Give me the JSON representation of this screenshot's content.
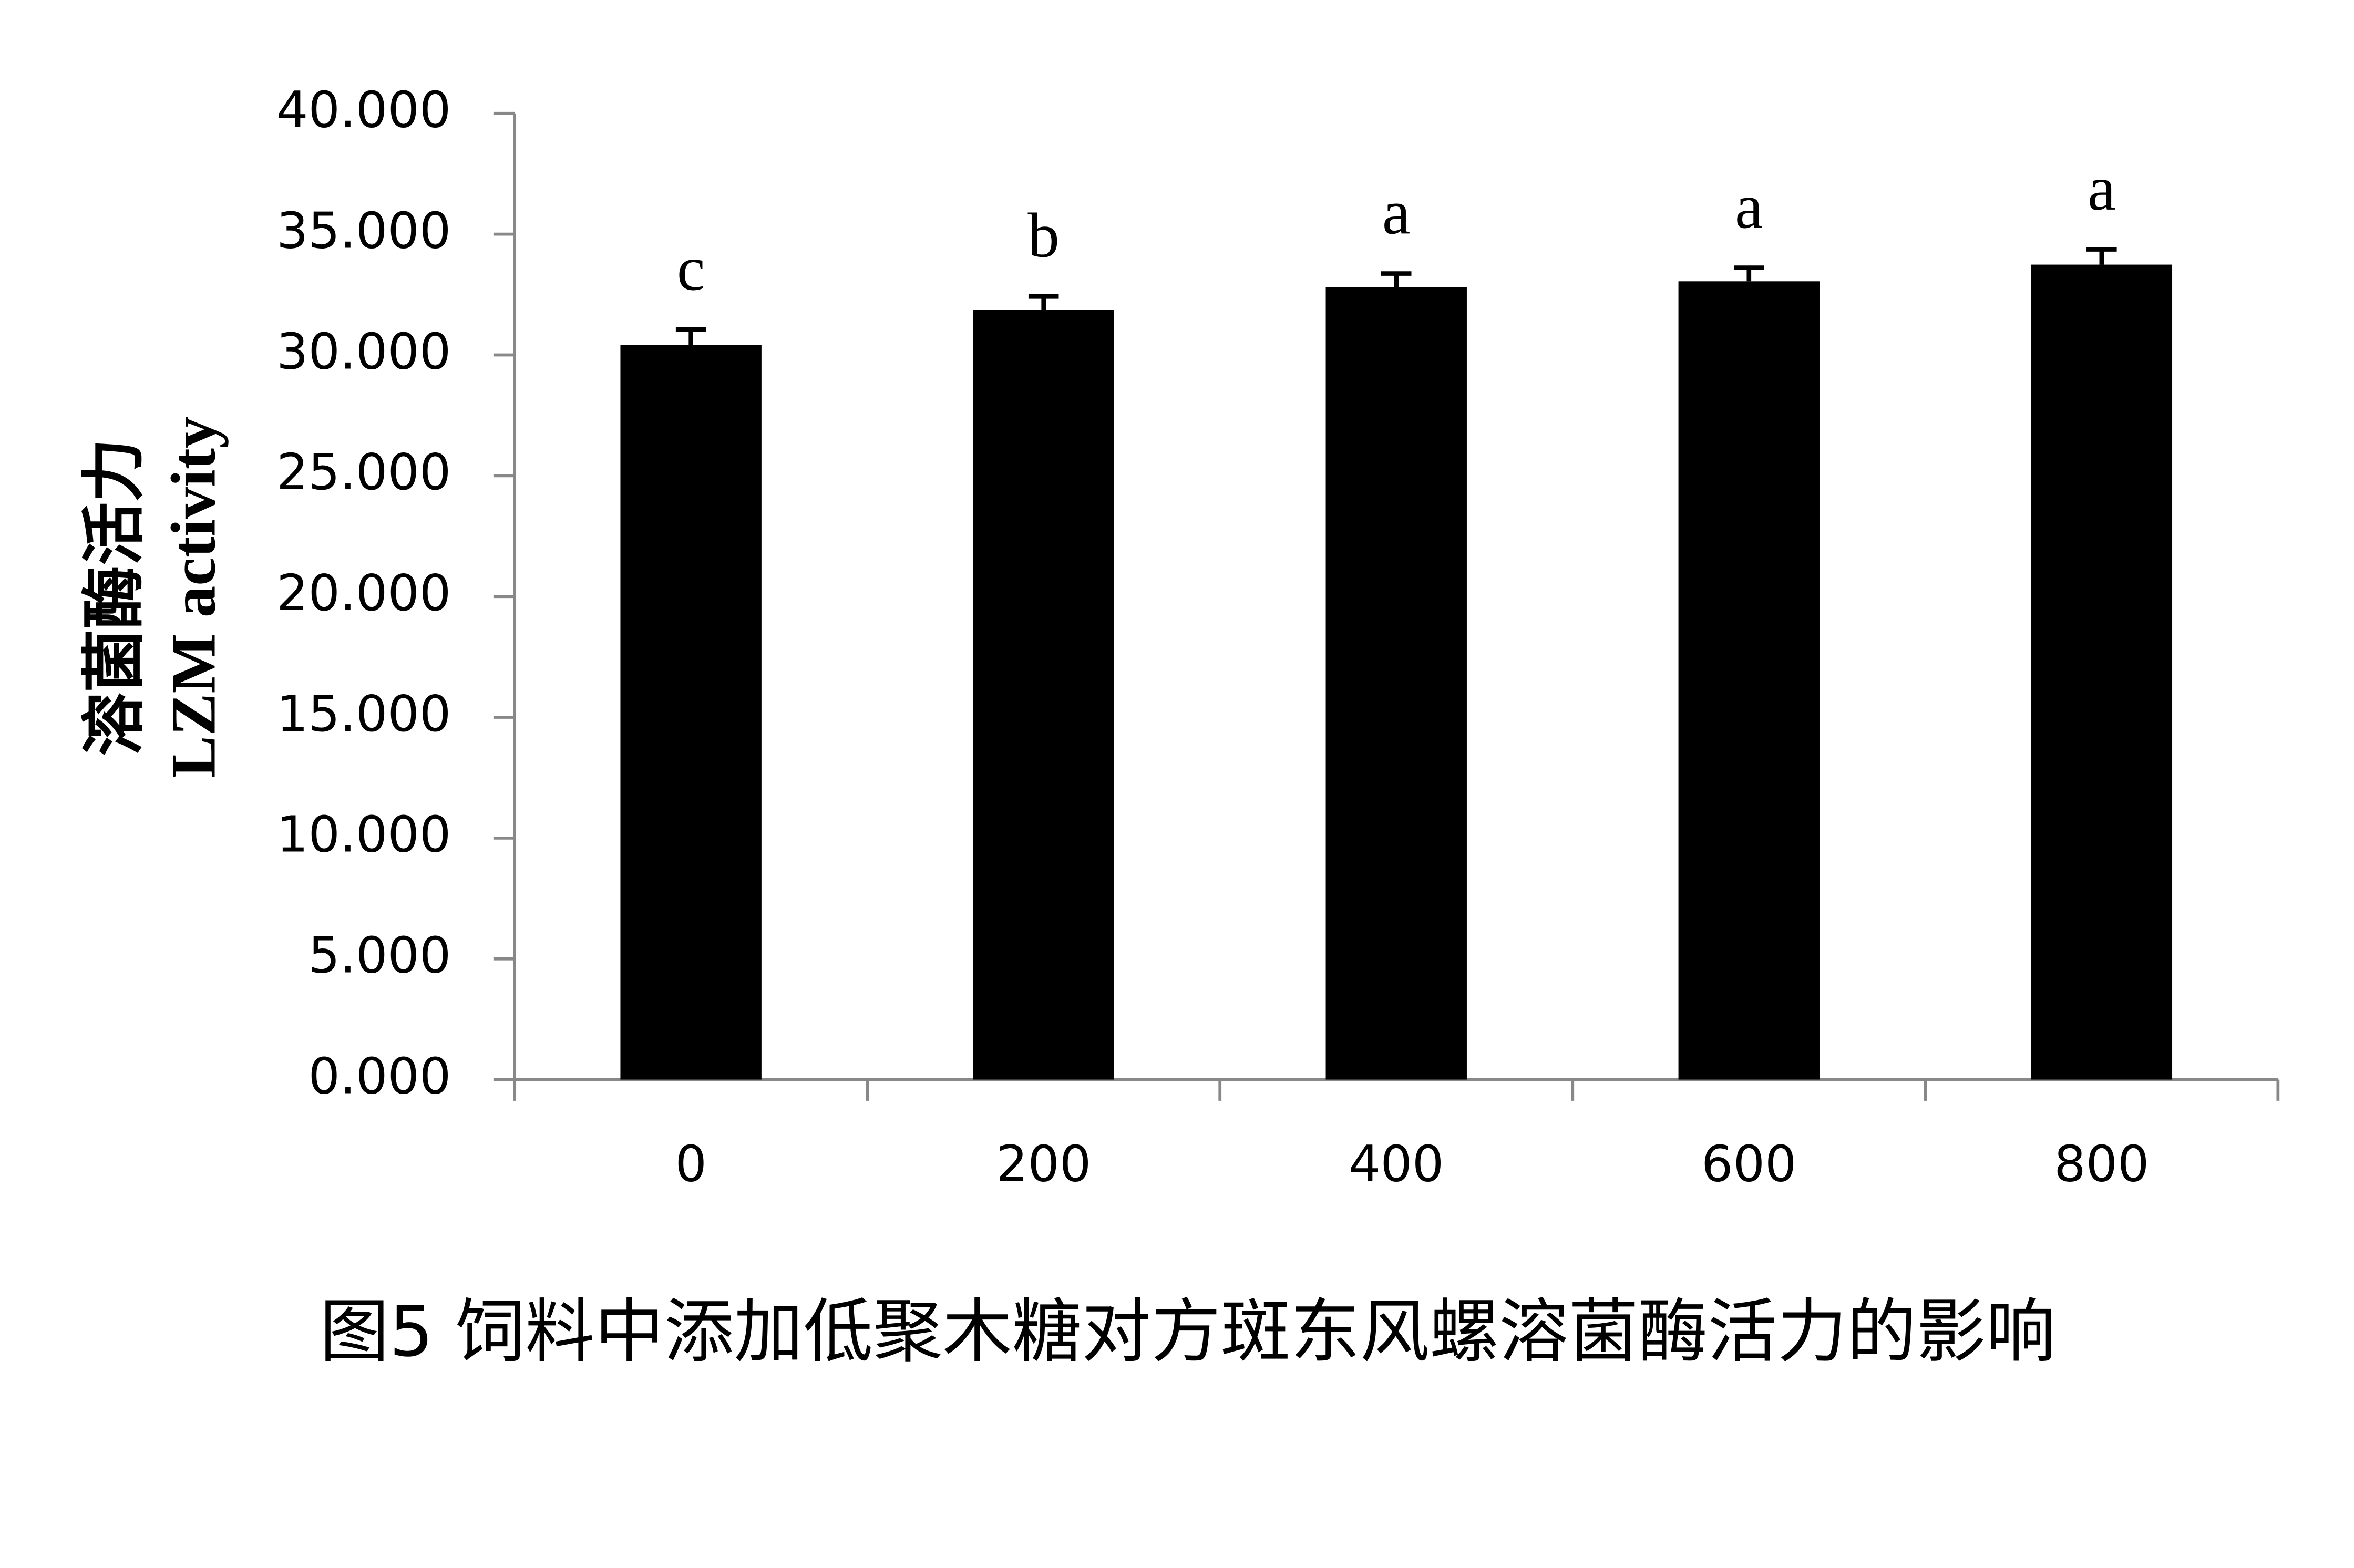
{
  "chart_data": {
    "type": "bar",
    "caption": "图5 饲料中添加低聚木糖对方斑东风螺溶菌酶活力的影响",
    "y_label_lines": [
      "溶菌酶活力",
      "LZM activity"
    ],
    "categories": [
      "0",
      "200",
      "400",
      "600",
      "800"
    ],
    "values": [
      30.42,
      31.86,
      32.8,
      33.05,
      33.74
    ],
    "errors": [
      0.63,
      0.56,
      0.57,
      0.56,
      0.63
    ],
    "letters": [
      "c",
      "b",
      "a",
      "a",
      "a"
    ],
    "color": "#000000",
    "ylim": [
      0,
      40
    ],
    "yticks": [
      {
        "value": 0,
        "label": "0.000"
      },
      {
        "value": 5,
        "label": "5.000"
      },
      {
        "value": 10,
        "label": "10.000"
      },
      {
        "value": 15,
        "label": "15.000"
      },
      {
        "value": 20,
        "label": "20.000"
      },
      {
        "value": 25,
        "label": "25.000"
      },
      {
        "value": 30,
        "label": "30.000"
      },
      {
        "value": 35,
        "label": "35.000"
      },
      {
        "value": 40,
        "label": "40.000"
      }
    ],
    "grid": false
  }
}
